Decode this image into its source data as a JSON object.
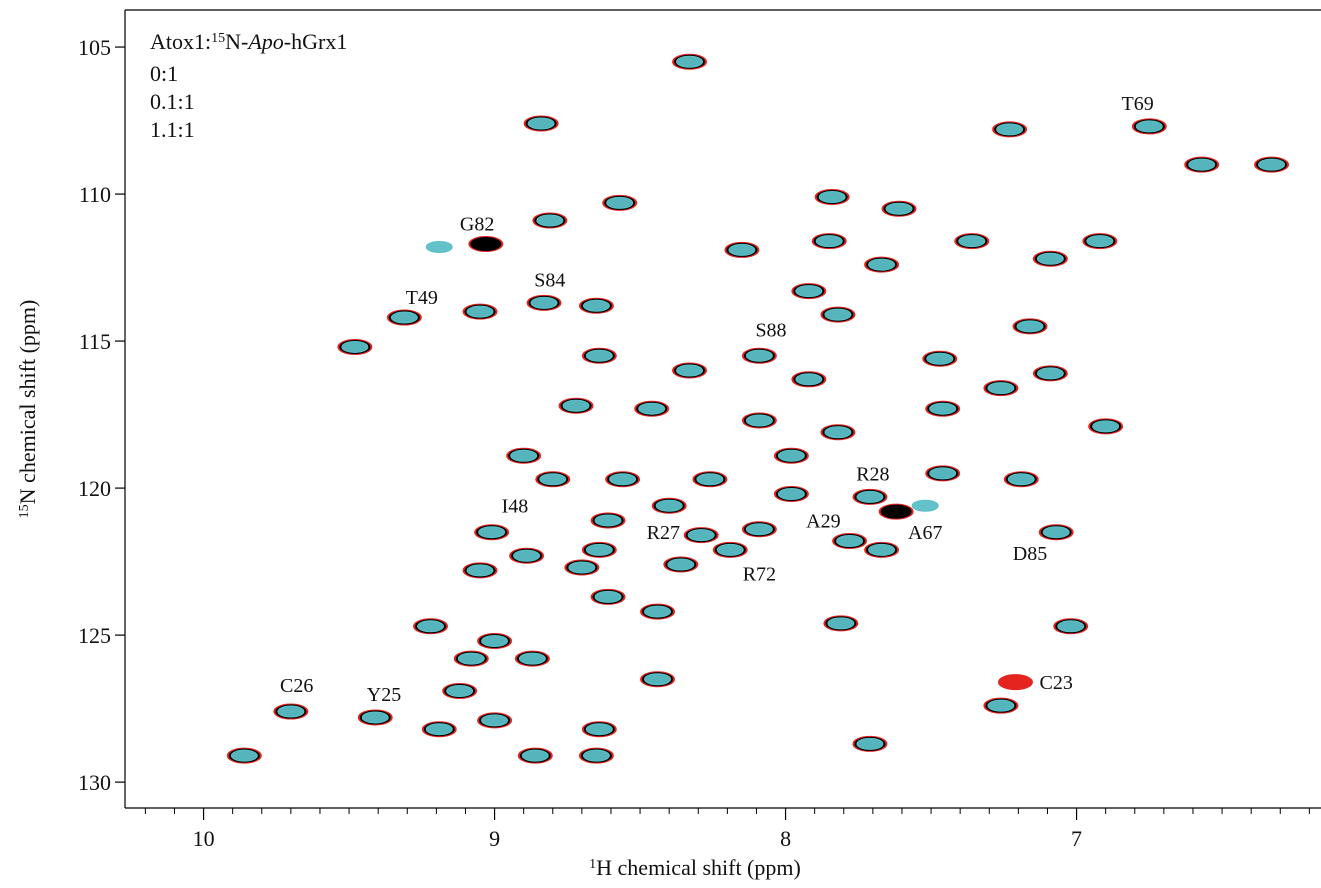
{
  "chart_data": {
    "type": "scatter",
    "xlabel": [
      "1",
      "H chemical shift  (ppm)"
    ],
    "ylabel": [
      "15",
      "N chemical shift  (ppm)"
    ],
    "legend_title": [
      "Atox1:",
      "15",
      "N-",
      "Apo",
      "-hGrx1"
    ],
    "legend": "upper left",
    "xlim": [
      6.16,
      10.27
    ],
    "x_reversed": true,
    "ylim": [
      103.74,
      130.88
    ],
    "y_reversed": true,
    "xticks": [
      10,
      9,
      8,
      7
    ],
    "xminor_ticks": [
      10.2,
      10.1,
      9.9,
      9.8,
      9.7,
      9.6,
      9.5,
      9.4,
      9.3,
      9.2,
      9.1,
      8.9,
      8.8,
      8.7,
      8.6,
      8.5,
      8.4,
      8.3,
      8.2,
      8.1,
      7.9,
      7.8,
      7.7,
      7.6,
      7.5,
      7.4,
      7.3,
      7.2,
      7.1,
      6.9,
      6.8,
      6.7,
      6.6,
      6.5,
      6.4,
      6.3,
      6.2
    ],
    "yticks": [
      105,
      110,
      115,
      120,
      125,
      130
    ],
    "series": [
      {
        "name": "0:1",
        "color": "#e52420",
        "x": [
          8.33,
          8.84,
          7.23,
          6.75,
          6.33,
          6.57,
          7.84,
          7.61,
          8.57,
          8.81,
          8.15,
          7.85,
          7.67,
          7.36,
          7.09,
          6.92,
          7.92,
          7.82,
          8.83,
          8.65,
          9.05,
          9.31,
          9.48,
          7.16,
          8.09,
          8.64,
          8.33,
          7.92,
          7.47,
          7.09,
          7.26,
          8.72,
          8.46,
          8.09,
          7.82,
          7.46,
          6.9,
          7.98,
          8.9,
          8.8,
          8.56,
          8.26,
          7.98,
          7.71,
          7.46,
          7.19,
          8.4,
          8.61,
          8.29,
          8.09,
          7.78,
          7.67,
          7.07,
          9.01,
          8.89,
          8.64,
          9.05,
          8.36,
          8.7,
          8.19,
          8.61,
          8.44,
          9.22,
          9.0,
          9.08,
          8.87,
          7.81,
          7.02,
          8.44,
          9.12,
          9.7,
          9.41,
          9.19,
          9.0,
          8.64,
          8.86,
          8.65,
          9.86,
          7.71,
          9.03,
          7.62,
          7.21,
          7.26
        ],
        "y": [
          105.5,
          107.6,
          107.8,
          107.7,
          109.0,
          109.0,
          110.1,
          110.5,
          110.3,
          110.9,
          111.9,
          111.6,
          112.4,
          111.6,
          112.2,
          111.6,
          113.3,
          114.1,
          113.7,
          113.8,
          114.0,
          114.2,
          115.2,
          114.5,
          115.5,
          115.5,
          116.0,
          116.3,
          115.6,
          116.1,
          116.6,
          117.2,
          117.3,
          117.7,
          118.1,
          117.3,
          117.9,
          118.9,
          118.9,
          119.7,
          119.7,
          119.7,
          120.2,
          120.3,
          119.5,
          119.7,
          120.6,
          121.1,
          121.6,
          121.4,
          121.8,
          122.1,
          121.5,
          121.5,
          122.3,
          122.1,
          122.8,
          122.6,
          122.7,
          122.1,
          123.7,
          124.2,
          124.7,
          125.2,
          125.8,
          125.8,
          124.6,
          124.7,
          126.5,
          126.9,
          127.6,
          127.8,
          128.2,
          127.9,
          128.2,
          129.1,
          129.1,
          129.1,
          128.7,
          111.7,
          120.8,
          126.6,
          127.4
        ]
      },
      {
        "name": "0.1:1",
        "color": "#000000",
        "x": [
          8.33,
          8.84,
          7.23,
          6.75,
          6.33,
          6.57,
          7.84,
          7.61,
          8.57,
          8.81,
          8.15,
          7.85,
          7.67,
          7.36,
          7.09,
          6.92,
          7.92,
          7.82,
          8.83,
          8.65,
          9.05,
          9.31,
          9.48,
          7.16,
          8.09,
          8.64,
          8.33,
          7.92,
          7.47,
          7.09,
          7.26,
          8.72,
          8.46,
          8.09,
          7.82,
          7.46,
          6.9,
          7.98,
          8.9,
          8.8,
          8.56,
          8.26,
          7.98,
          7.71,
          7.46,
          7.19,
          8.4,
          8.61,
          8.29,
          8.09,
          7.78,
          7.67,
          7.07,
          9.01,
          8.89,
          8.64,
          9.05,
          8.36,
          8.7,
          8.19,
          8.61,
          8.44,
          9.22,
          9.0,
          9.08,
          8.87,
          7.81,
          7.02,
          8.44,
          9.12,
          9.7,
          9.41,
          9.19,
          9.0,
          8.64,
          8.86,
          8.65,
          9.86,
          7.71,
          9.03,
          7.62,
          7.26
        ],
        "y": [
          105.5,
          107.6,
          107.8,
          107.7,
          109.0,
          109.0,
          110.1,
          110.5,
          110.3,
          110.9,
          111.9,
          111.6,
          112.4,
          111.6,
          112.2,
          111.6,
          113.3,
          114.1,
          113.7,
          113.8,
          114.0,
          114.2,
          115.2,
          114.5,
          115.5,
          115.5,
          116.0,
          116.3,
          115.6,
          116.1,
          116.6,
          117.2,
          117.3,
          117.7,
          118.1,
          117.3,
          117.9,
          118.9,
          118.9,
          119.7,
          119.7,
          119.7,
          120.2,
          120.3,
          119.5,
          119.7,
          120.6,
          121.1,
          121.6,
          121.4,
          121.8,
          122.1,
          121.5,
          121.5,
          122.3,
          122.1,
          122.8,
          122.6,
          122.7,
          122.1,
          123.7,
          124.2,
          124.7,
          125.2,
          125.8,
          125.8,
          124.6,
          124.7,
          126.5,
          126.9,
          127.6,
          127.8,
          128.2,
          127.9,
          128.2,
          129.1,
          129.1,
          129.1,
          128.7,
          111.7,
          120.8,
          127.4
        ]
      },
      {
        "name": "1.1:1",
        "color": "#5bbfc6",
        "x": [
          8.33,
          8.84,
          7.23,
          6.75,
          6.33,
          6.57,
          7.84,
          7.61,
          8.57,
          8.81,
          8.15,
          7.85,
          7.67,
          7.36,
          7.09,
          6.92,
          7.92,
          7.82,
          8.83,
          8.65,
          9.05,
          9.31,
          9.48,
          7.16,
          8.09,
          8.64,
          8.33,
          7.92,
          7.47,
          7.09,
          7.26,
          8.72,
          8.46,
          8.09,
          7.82,
          7.46,
          6.9,
          7.98,
          8.9,
          8.8,
          8.56,
          8.26,
          7.98,
          7.71,
          7.46,
          7.19,
          8.4,
          8.61,
          8.29,
          8.09,
          7.78,
          7.67,
          7.07,
          9.01,
          8.89,
          8.64,
          9.05,
          8.36,
          8.7,
          8.19,
          8.61,
          8.44,
          9.22,
          9.0,
          9.08,
          8.87,
          7.81,
          7.02,
          8.44,
          9.12,
          9.7,
          9.41,
          9.19,
          9.0,
          8.64,
          8.86,
          8.65,
          9.86,
          7.71,
          9.19,
          7.52,
          7.26
        ],
        "y": [
          105.5,
          107.6,
          107.8,
          107.7,
          109.0,
          109.0,
          110.1,
          110.5,
          110.3,
          110.9,
          111.9,
          111.6,
          112.4,
          111.6,
          112.2,
          111.6,
          113.3,
          114.1,
          113.7,
          113.8,
          114.0,
          114.2,
          115.2,
          114.5,
          115.5,
          115.5,
          116.0,
          116.3,
          115.6,
          116.1,
          116.6,
          117.2,
          117.3,
          117.7,
          118.1,
          117.3,
          117.9,
          118.9,
          118.9,
          119.7,
          119.7,
          119.7,
          120.2,
          120.3,
          119.5,
          119.7,
          120.6,
          121.1,
          121.6,
          121.4,
          121.8,
          122.1,
          121.5,
          121.5,
          122.3,
          122.1,
          122.8,
          122.6,
          122.7,
          122.1,
          123.7,
          124.2,
          124.7,
          125.2,
          125.8,
          125.8,
          124.6,
          124.7,
          126.5,
          126.9,
          127.6,
          127.8,
          128.2,
          127.9,
          128.2,
          129.1,
          129.1,
          129.1,
          128.7,
          111.8,
          120.6,
          127.4
        ]
      }
    ],
    "annotations": [
      {
        "text": "T69",
        "x": 6.79,
        "y": 106.9
      },
      {
        "text": "G82",
        "x": 9.06,
        "y": 111.0
      },
      {
        "text": "S84",
        "x": 8.81,
        "y": 112.9
      },
      {
        "text": "T49",
        "x": 9.25,
        "y": 113.5
      },
      {
        "text": "S88",
        "x": 8.05,
        "y": 114.6
      },
      {
        "text": "R28",
        "x": 7.7,
        "y": 119.5
      },
      {
        "text": "I48",
        "x": 8.93,
        "y": 120.6
      },
      {
        "text": "A29",
        "x": 7.87,
        "y": 121.1
      },
      {
        "text": "R27",
        "x": 8.42,
        "y": 121.5
      },
      {
        "text": "A67",
        "x": 7.52,
        "y": 121.5
      },
      {
        "text": "D85",
        "x": 7.16,
        "y": 122.2
      },
      {
        "text": "R72",
        "x": 8.09,
        "y": 122.9
      },
      {
        "text": "C26",
        "x": 9.68,
        "y": 126.7
      },
      {
        "text": "Y25",
        "x": 9.38,
        "y": 127.0
      },
      {
        "text": "C23",
        "x": 7.07,
        "y": 126.6
      }
    ]
  }
}
